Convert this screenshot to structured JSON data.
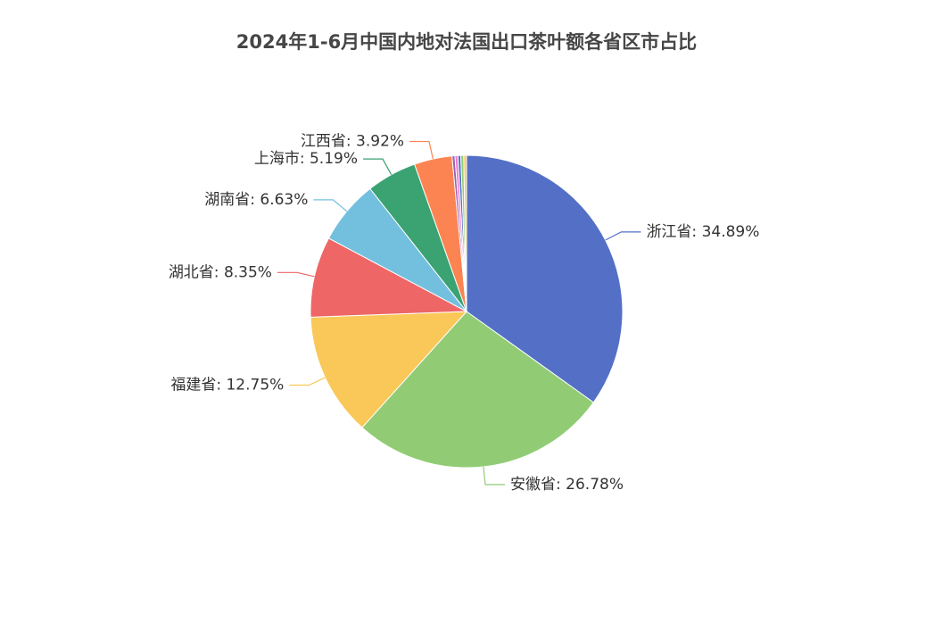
{
  "chart_data": {
    "type": "pie",
    "title": "2024年1-6月中国内地对法国出口茶叶额各省区市占比",
    "values": [
      34.89,
      26.78,
      12.75,
      8.35,
      6.63,
      5.19,
      3.92,
      0.3,
      0.3,
      0.3,
      0.3,
      0.29
    ],
    "value_labels": [
      "浙江省: 34.89%",
      "安徽省: 26.78%",
      "福建省: 12.75%",
      "湖北省: 8.35%",
      "湖南省: 6.63%",
      "上海市: 5.19%",
      "江西省: 3.92%",
      null,
      null,
      null,
      null,
      null
    ],
    "colors": [
      "#5470c6",
      "#91cc75",
      "#fac858",
      "#ee6666",
      "#73c0de",
      "#3ba272",
      "#fc8452",
      "#9a60b4",
      "#ea7ccc",
      "#5470c6",
      "#91cc75",
      "#fac858"
    ]
  }
}
